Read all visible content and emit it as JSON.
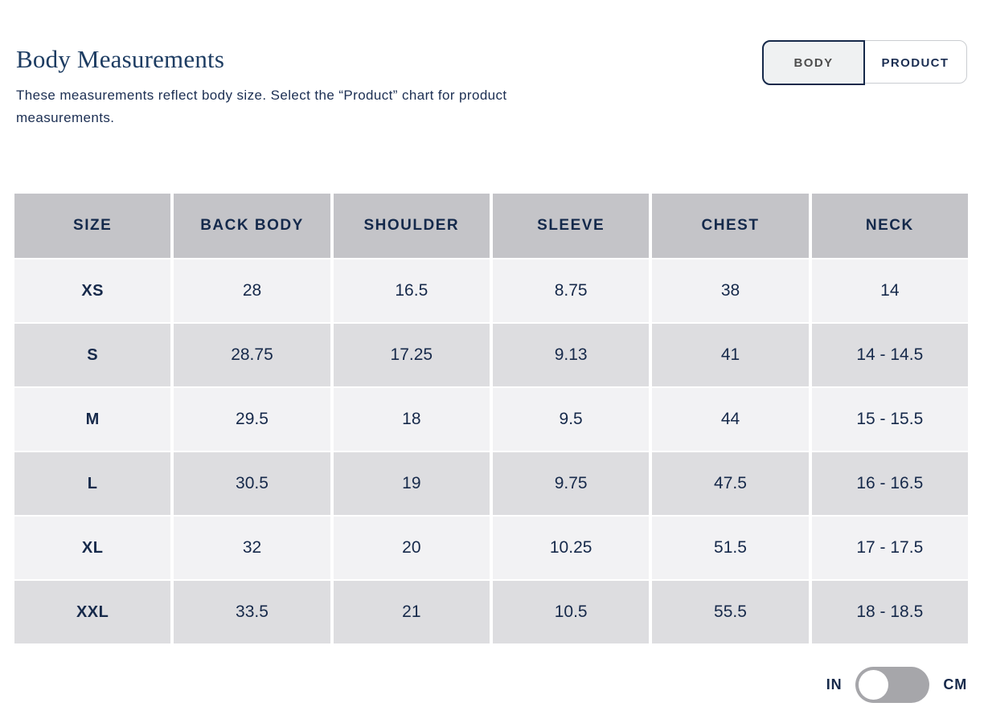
{
  "page": {
    "title": "Body Measurements",
    "description": "These measurements reflect body size. Select the “Product” chart for product measurements."
  },
  "chart_toggle": {
    "options": [
      {
        "label": "BODY",
        "selected": true
      },
      {
        "label": "PRODUCT",
        "selected": false
      }
    ]
  },
  "table": {
    "headers": [
      "SIZE",
      "BACK BODY",
      "SHOULDER",
      "SLEEVE",
      "CHEST",
      "NECK"
    ],
    "rows": [
      {
        "size": "XS",
        "values": [
          "28",
          "16.5",
          "8.75",
          "38",
          "14"
        ]
      },
      {
        "size": "S",
        "values": [
          "28.75",
          "17.25",
          "9.13",
          "41",
          "14 - 14.5"
        ]
      },
      {
        "size": "M",
        "values": [
          "29.5",
          "18",
          "9.5",
          "44",
          "15 - 15.5"
        ]
      },
      {
        "size": "L",
        "values": [
          "30.5",
          "19",
          "9.75",
          "47.5",
          "16 - 16.5"
        ]
      },
      {
        "size": "XL",
        "values": [
          "32",
          "20",
          "10.25",
          "51.5",
          "17 - 17.5"
        ]
      },
      {
        "size": "XXL",
        "values": [
          "33.5",
          "21",
          "10.5",
          "55.5",
          "18 - 18.5"
        ]
      }
    ]
  },
  "unit_toggle": {
    "left_label": "IN",
    "right_label": "CM",
    "selected": "IN"
  },
  "colors": {
    "navy_text": "#16294a",
    "title_navy": "#1d3c62",
    "header_gray": "#c4c4c8",
    "row_light": "#f2f2f4",
    "row_dark": "#dddde0",
    "selected_tab_bg": "#eff1f2",
    "selected_tab_border": "#16294a",
    "toggle_gray": "#a6a6aa"
  }
}
